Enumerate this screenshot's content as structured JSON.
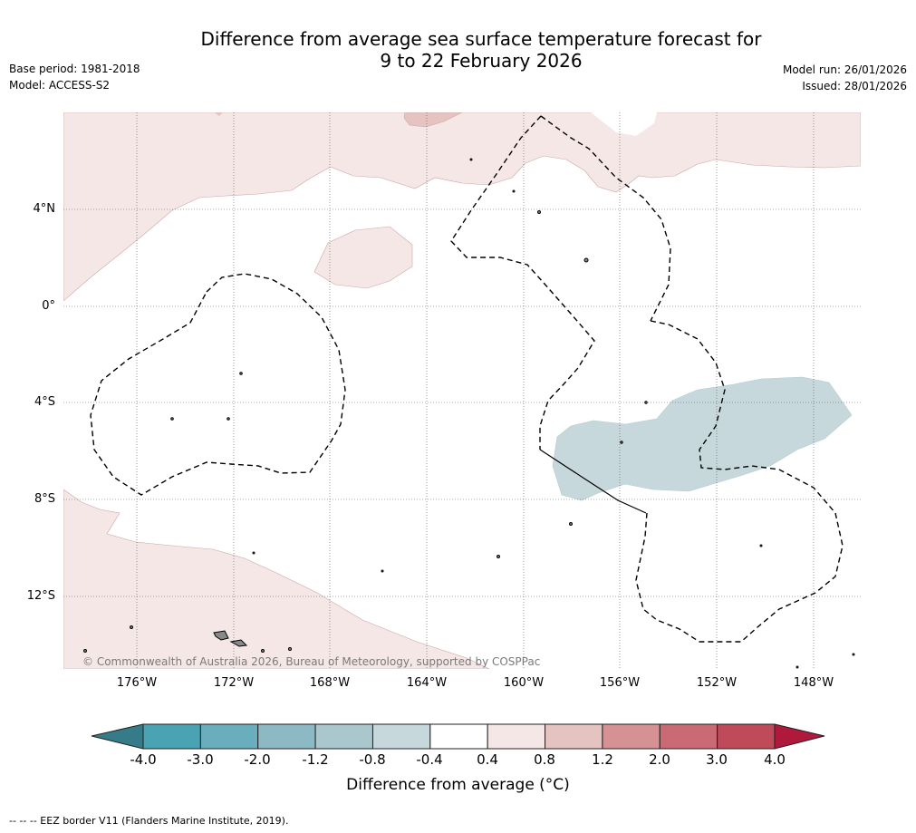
{
  "title": {
    "line1": "Difference from average sea surface temperature forecast for",
    "line2": "9 to 22 February 2026"
  },
  "meta": {
    "base_period": "Base period: 1981-2018",
    "model": "Model: ACCESS-S2",
    "model_run": "Model run: 26/01/2026",
    "issued": "Issued: 28/01/2026"
  },
  "map": {
    "lat_labels": [
      "4°N",
      "0°",
      "4°S",
      "8°S",
      "12°S"
    ],
    "lon_labels": [
      "176°W",
      "172°W",
      "168°W",
      "164°W",
      "160°W",
      "156°W",
      "152°W",
      "148°W"
    ],
    "copyright": "© Commonwealth of Australia 2026, Bureau of Meteorology, supported by COSPPac"
  },
  "colorbar": {
    "ticks": [
      "-4.0",
      "-3.0",
      "-2.0",
      "-1.2",
      "-0.8",
      "-0.4",
      "0.4",
      "0.8",
      "1.2",
      "2.0",
      "3.0",
      "4.0"
    ],
    "colors": [
      "#4aa3b3",
      "#6aaebd",
      "#8db9c5",
      "#aac7cd",
      "#c6d8dc",
      "#ffffff",
      "#f4e7e6",
      "#e5c3c0",
      "#d69194",
      "#c96a74",
      "#bf4a5a"
    ],
    "low_extend_color": "#367c88",
    "high_extend_color": "#b0183c",
    "label": "Difference from average (°C)"
  },
  "footer": {
    "legend": "-- -- -- EEZ border V11 (Flanders Marine Institute, 2019)."
  }
}
